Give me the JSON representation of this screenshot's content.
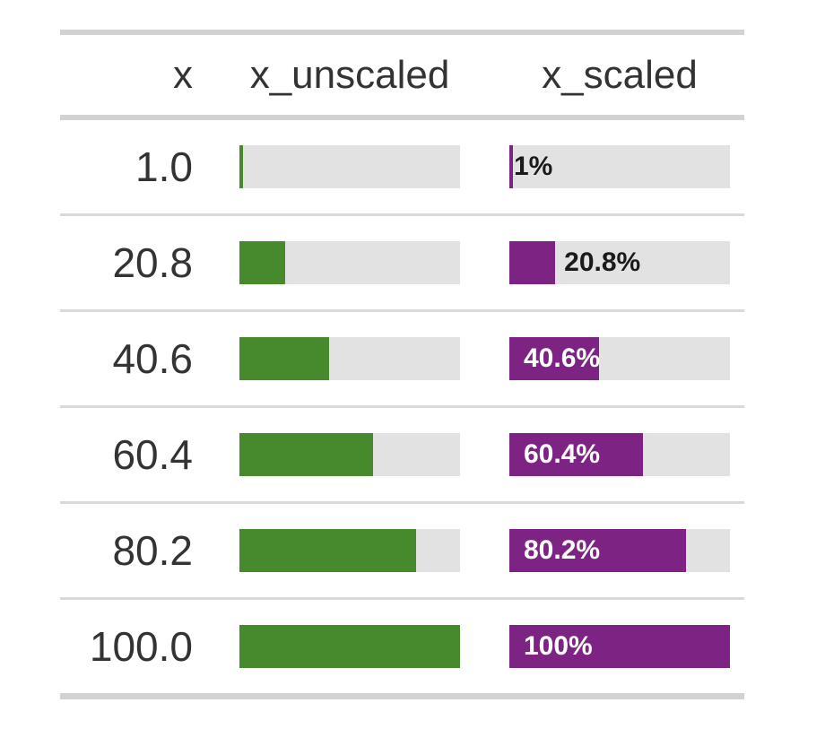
{
  "table": {
    "columns": [
      "x",
      "x_unscaled",
      "x_scaled"
    ],
    "colors": {
      "unscaled_fill": "#468a2d",
      "scaled_fill": "#7c2383",
      "track": "#e2e2e2",
      "border": "#d2d2d2",
      "divider": "#d9d9d9",
      "text": "#333333",
      "label_inside": "#ffffff",
      "label_outside": "#1a1a1a"
    },
    "label_inside_cutoff_pct": 40
  },
  "chart_data": {
    "type": "table",
    "title": "",
    "columns": [
      "x",
      "x_unscaled",
      "x_scaled"
    ],
    "rows": [
      {
        "x": "1.0",
        "x_unscaled_pct": 1.0,
        "x_scaled_pct": 1.0,
        "x_scaled_label": "1%"
      },
      {
        "x": "20.8",
        "x_unscaled_pct": 20.8,
        "x_scaled_pct": 20.8,
        "x_scaled_label": "20.8%"
      },
      {
        "x": "40.6",
        "x_unscaled_pct": 40.6,
        "x_scaled_pct": 40.6,
        "x_scaled_label": "40.6%"
      },
      {
        "x": "60.4",
        "x_unscaled_pct": 60.4,
        "x_scaled_pct": 60.4,
        "x_scaled_label": "60.4%"
      },
      {
        "x": "80.2",
        "x_unscaled_pct": 80.2,
        "x_scaled_pct": 80.2,
        "x_scaled_label": "80.2%"
      },
      {
        "x": "100.0",
        "x_unscaled_pct": 100,
        "x_scaled_pct": 100,
        "x_scaled_label": "100%"
      }
    ],
    "bar_axis_range": [
      0,
      100
    ],
    "unscaled_bar_color": "#468a2d",
    "scaled_bar_color": "#7c2383",
    "legend": "none",
    "grid": false
  }
}
